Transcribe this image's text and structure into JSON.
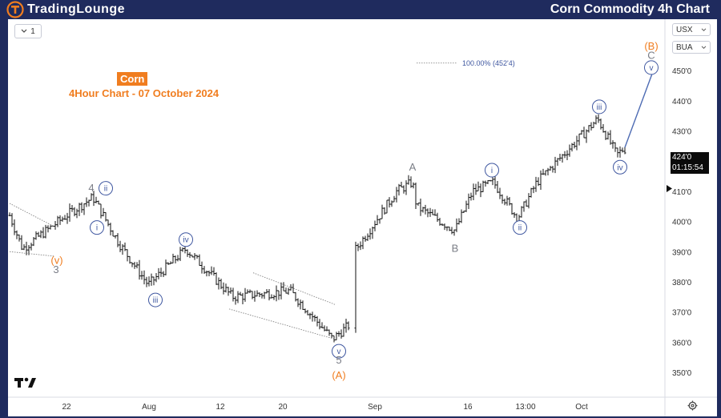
{
  "header": {
    "logo_text": "TradingLounge",
    "title": "Corn Commodity 4h Chart"
  },
  "toolbar": {
    "interval_label": "1",
    "currency": "USX",
    "unit": "BUA"
  },
  "chart_info": {
    "badge": "Corn",
    "subtitle": "4Hour Chart - 07 October 2024"
  },
  "price_tag": {
    "price": "424'0",
    "countdown": "01:15:54"
  },
  "target_label": "100.00% (452'4)",
  "colors": {
    "background": "#1f2b5e",
    "accent_orange": "#f07d1f",
    "wave_blue": "#3f57a0",
    "wave_grey": "#7a7d86",
    "candle": "#111111",
    "projection": "#4d6bb3"
  },
  "icons": {
    "logo": "tradinglounge-logo-icon",
    "tv": "tradingview-logo-icon",
    "settings": "gear-icon",
    "dropdown": "chevron-down-icon",
    "scroll": "triangle-right-icon"
  },
  "chart_data": {
    "type": "candlestick",
    "title": "Corn Commodity 4h Chart",
    "ylim": [
      345,
      460
    ],
    "y_ticks": [
      "350'0",
      "360'0",
      "370'0",
      "380'0",
      "390'0",
      "400'0",
      "410'0",
      "420'0",
      "430'0",
      "440'0",
      "450'0"
    ],
    "x_ticks": [
      "22",
      "Aug",
      "12",
      "20",
      "Sep",
      "16",
      "13:00",
      "Oct"
    ],
    "price_path": [
      {
        "t": "Jul 18",
        "price": 402
      },
      {
        "t": "Jul 19",
        "price": 391
      },
      {
        "t": "Jul 23",
        "price": 403
      },
      {
        "t": "Jul 26",
        "price": 408
      },
      {
        "t": "Jul 30",
        "price": 393
      },
      {
        "t": "Aug 5",
        "price": 379
      },
      {
        "t": "Aug 8",
        "price": 391
      },
      {
        "t": "Aug 13",
        "price": 375
      },
      {
        "t": "Aug 20",
        "price": 377
      },
      {
        "t": "Aug 26",
        "price": 361
      },
      {
        "t": "Aug 28",
        "price": 366
      },
      {
        "t": "Sep 3",
        "price": 390
      },
      {
        "t": "Sep 5",
        "price": 410
      },
      {
        "t": "Sep 9",
        "price": 413
      },
      {
        "t": "Sep 10",
        "price": 405
      },
      {
        "t": "Sep 13",
        "price": 397
      },
      {
        "t": "Sep 16",
        "price": 410
      },
      {
        "t": "Sep 20",
        "price": 413
      },
      {
        "t": "Sep 24",
        "price": 401
      },
      {
        "t": "Sep 26",
        "price": 413
      },
      {
        "t": "Oct 2",
        "price": 434
      },
      {
        "t": "Oct 4",
        "price": 422
      },
      {
        "t": "Oct 7",
        "price": 424
      }
    ],
    "projection": {
      "from": 424,
      "to": 452.5
    },
    "wave_labels": [
      {
        "text": "4",
        "price": 411,
        "style": "grey"
      },
      {
        "text": "ii",
        "price": 411,
        "style": "circle"
      },
      {
        "text": "i",
        "price": 398,
        "style": "circle"
      },
      {
        "text": "(v)",
        "price": 387,
        "style": "orange"
      },
      {
        "text": "3",
        "price": 384,
        "style": "grey"
      },
      {
        "text": "iii",
        "price": 374,
        "style": "circle"
      },
      {
        "text": "iv",
        "price": 394,
        "style": "circle"
      },
      {
        "text": "v",
        "price": 357,
        "style": "circle"
      },
      {
        "text": "5",
        "price": 354,
        "style": "grey"
      },
      {
        "text": "(A)",
        "price": 349,
        "style": "orange"
      },
      {
        "text": "A",
        "price": 418,
        "style": "grey"
      },
      {
        "text": "B",
        "price": 391,
        "style": "grey"
      },
      {
        "text": "i",
        "price": 417,
        "style": "circle"
      },
      {
        "text": "ii",
        "price": 398,
        "style": "circle"
      },
      {
        "text": "iii",
        "price": 438,
        "style": "circle"
      },
      {
        "text": "iv",
        "price": 418,
        "style": "circle"
      },
      {
        "text": "v",
        "price": 451,
        "style": "circle"
      },
      {
        "text": "C",
        "price": 455,
        "style": "grey"
      },
      {
        "text": "(B)",
        "price": 458,
        "style": "orange"
      }
    ],
    "grid": false,
    "legend": "none"
  }
}
